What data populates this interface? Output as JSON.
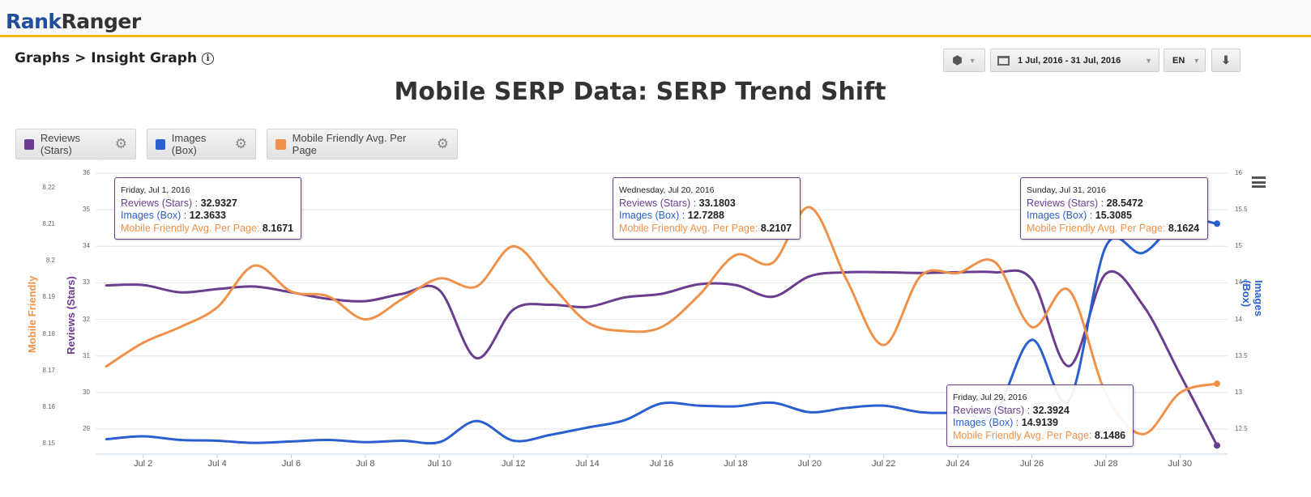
{
  "header": {
    "logo_part1": "Rank",
    "logo_part2": "Ranger"
  },
  "breadcrumb": {
    "text": "Graphs > Insight Graph",
    "info_icon": "i"
  },
  "controls": {
    "view_icon": "cube-icon",
    "date_range": "1 Jul, 2016 - 31 Jul, 2016",
    "language": "EN",
    "download_icon": "download-icon"
  },
  "legend": [
    {
      "label": "Reviews (Stars)",
      "color": "#6a3d8f"
    },
    {
      "label": "Images (Box)",
      "color": "#2a5fcf"
    },
    {
      "label": "Mobile Friendly Avg. Per Page",
      "color": "#f0914a"
    }
  ],
  "tooltips": [
    {
      "date": "Friday, Jul 1, 2016",
      "rows": [
        {
          "label": "Reviews (Stars) : ",
          "value": "32.9327"
        },
        {
          "label": "Images (Box) : ",
          "value": "12.3633"
        },
        {
          "label": "Mobile Friendly Avg. Per Page: ",
          "value": "8.1671"
        }
      ]
    },
    {
      "date": "Wednesday, Jul 20, 2016",
      "rows": [
        {
          "label": "Reviews (Stars) : ",
          "value": "33.1803"
        },
        {
          "label": "Images (Box) : ",
          "value": "12.7288"
        },
        {
          "label": "Mobile Friendly Avg. Per Page: ",
          "value": "8.2107"
        }
      ]
    },
    {
      "date": "Sunday, Jul 31, 2016",
      "rows": [
        {
          "label": "Reviews (Stars) : ",
          "value": "28.5472"
        },
        {
          "label": "Images (Box) : ",
          "value": "15.3085"
        },
        {
          "label": "Mobile Friendly Avg. Per Page: ",
          "value": "8.1624"
        }
      ]
    },
    {
      "date": "Friday, Jul 29, 2016",
      "rows": [
        {
          "label": "Reviews (Stars) : ",
          "value": "32.3924"
        },
        {
          "label": "Images (Box) : ",
          "value": "14.9139"
        },
        {
          "label": "Mobile Friendly Avg. Per Page: ",
          "value": "8.1486"
        }
      ]
    }
  ],
  "chart_data": {
    "type": "line",
    "title": "Mobile SERP Data: SERP Trend Shift",
    "x": [
      "Jul 1",
      "Jul 2",
      "Jul 3",
      "Jul 4",
      "Jul 5",
      "Jul 6",
      "Jul 7",
      "Jul 8",
      "Jul 9",
      "Jul 10",
      "Jul 11",
      "Jul 12",
      "Jul 13",
      "Jul 14",
      "Jul 15",
      "Jul 16",
      "Jul 17",
      "Jul 18",
      "Jul 19",
      "Jul 20",
      "Jul 21",
      "Jul 22",
      "Jul 23",
      "Jul 24",
      "Jul 25",
      "Jul 26",
      "Jul 27",
      "Jul 28",
      "Jul 29",
      "Jul 30",
      "Jul 31"
    ],
    "x_tick_labels": [
      "Jul 2",
      "Jul 4",
      "Jul 6",
      "Jul 8",
      "Jul 10",
      "Jul 12",
      "Jul 14",
      "Jul 16",
      "Jul 18",
      "Jul 20",
      "Jul 22",
      "Jul 24",
      "Jul 26",
      "Jul 28",
      "Jul 30"
    ],
    "axes": [
      {
        "id": "mobile",
        "title": "Mobile Friendly",
        "side": "left-outer",
        "color": "#f0914a",
        "range": [
          8.15,
          8.22
        ],
        "ticks": [
          "8.22",
          "8.21",
          "8.2",
          "8.19",
          "8.18",
          "8.17",
          "8.16",
          "8.15"
        ]
      },
      {
        "id": "reviews",
        "title": "Reviews (Stars)",
        "side": "left-inner",
        "color": "#6a3d8f",
        "range": [
          29,
          36
        ],
        "ticks": [
          "36",
          "35",
          "34",
          "33",
          "32",
          "31",
          "30",
          "29"
        ]
      },
      {
        "id": "images",
        "title": "Images (Box)",
        "side": "right",
        "color": "#2a5fcf",
        "range": [
          12.5,
          16
        ],
        "ticks": [
          "16",
          "15.5",
          "15",
          "14.5",
          "14",
          "13.5",
          "13",
          "12.5"
        ]
      }
    ],
    "series": [
      {
        "name": "Reviews (Stars)",
        "axis": "reviews",
        "color": "#6a3d8f",
        "values": [
          32.93,
          32.94,
          32.74,
          32.83,
          32.9,
          32.74,
          32.56,
          32.5,
          32.7,
          32.8,
          30.94,
          32.27,
          32.4,
          32.34,
          32.6,
          32.7,
          32.96,
          32.94,
          32.62,
          33.18,
          33.29,
          33.29,
          33.27,
          33.29,
          33.29,
          33.09,
          30.72,
          33.25,
          32.39,
          30.5,
          28.55
        ]
      },
      {
        "name": "Images (Box)",
        "axis": "images",
        "color": "#2a5fcf",
        "values": [
          12.36,
          12.4,
          12.35,
          12.34,
          12.31,
          12.33,
          12.35,
          12.32,
          12.34,
          12.32,
          12.61,
          12.34,
          12.42,
          12.52,
          12.62,
          12.85,
          12.82,
          12.81,
          12.86,
          12.73,
          12.79,
          12.82,
          12.73,
          12.72,
          12.72,
          13.72,
          12.89,
          15.0,
          14.91,
          15.36,
          15.31
        ]
      },
      {
        "name": "Mobile Friendly Avg. Per Page",
        "axis": "mobile",
        "color": "#f0914a",
        "values": [
          8.1671,
          8.1736,
          8.1779,
          8.1833,
          8.1947,
          8.1876,
          8.1863,
          8.18,
          8.1856,
          8.1912,
          8.189,
          8.2,
          8.1897,
          8.1792,
          8.1768,
          8.1779,
          8.1865,
          8.1976,
          8.1955,
          8.2107,
          8.1908,
          8.173,
          8.1919,
          8.1927,
          8.1957,
          8.1779,
          8.188,
          8.1597,
          8.1486,
          8.1599,
          8.1624
        ]
      }
    ],
    "grid": true,
    "legend": "top-left"
  }
}
